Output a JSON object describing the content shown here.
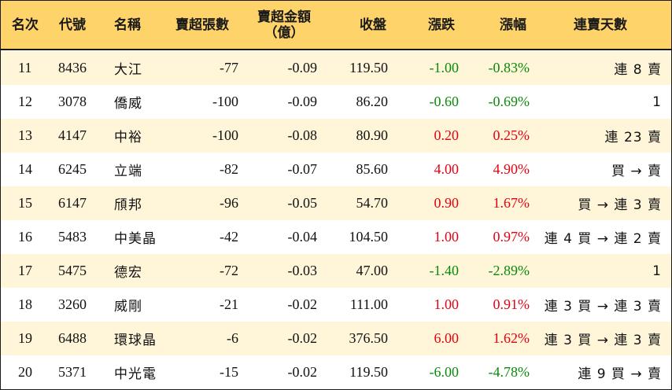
{
  "headers": {
    "rank": "名次",
    "code": "代號",
    "name": "名稱",
    "net_sell_lots": "賣超張數",
    "net_sell_amount_l1": "賣超金額",
    "net_sell_amount_l2": "（億）",
    "close": "收盤",
    "change": "漲跌",
    "pct": "漲幅",
    "streak": "連賣天數"
  },
  "colors": {
    "header_bg": "#fdd36a",
    "shaded_row": "#fff6d9",
    "up": "#e60012",
    "down": "#0a8a0a"
  },
  "rows": [
    {
      "rank": "11",
      "code": "8436",
      "name": "大江",
      "lots": "-77",
      "amount": "-0.09",
      "close": "119.50",
      "change": "-1.00",
      "pct": "-0.83%",
      "dir": "down",
      "streak": "連 8 賣"
    },
    {
      "rank": "12",
      "code": "3078",
      "name": "僑威",
      "lots": "-100",
      "amount": "-0.09",
      "close": "86.20",
      "change": "-0.60",
      "pct": "-0.69%",
      "dir": "down",
      "streak": "1"
    },
    {
      "rank": "13",
      "code": "4147",
      "name": "中裕",
      "lots": "-100",
      "amount": "-0.08",
      "close": "80.90",
      "change": "0.20",
      "pct": "0.25%",
      "dir": "up",
      "streak": "連 23 賣"
    },
    {
      "rank": "14",
      "code": "6245",
      "name": "立端",
      "lots": "-82",
      "amount": "-0.07",
      "close": "85.60",
      "change": "4.00",
      "pct": "4.90%",
      "dir": "up",
      "streak": "買 → 賣"
    },
    {
      "rank": "15",
      "code": "6147",
      "name": "頎邦",
      "lots": "-96",
      "amount": "-0.05",
      "close": "54.70",
      "change": "0.90",
      "pct": "1.67%",
      "dir": "up",
      "streak": "買 → 連 3 賣"
    },
    {
      "rank": "16",
      "code": "5483",
      "name": "中美晶",
      "lots": "-42",
      "amount": "-0.04",
      "close": "104.50",
      "change": "1.00",
      "pct": "0.97%",
      "dir": "up",
      "streak": "連 4 買 → 連 2 賣"
    },
    {
      "rank": "17",
      "code": "5475",
      "name": "德宏",
      "lots": "-72",
      "amount": "-0.03",
      "close": "47.00",
      "change": "-1.40",
      "pct": "-2.89%",
      "dir": "down",
      "streak": "1"
    },
    {
      "rank": "18",
      "code": "3260",
      "name": "威剛",
      "lots": "-21",
      "amount": "-0.02",
      "close": "111.00",
      "change": "1.00",
      "pct": "0.91%",
      "dir": "up",
      "streak": "連 3 買 → 連 3 賣"
    },
    {
      "rank": "19",
      "code": "6488",
      "name": "環球晶",
      "lots": "-6",
      "amount": "-0.02",
      "close": "376.50",
      "change": "6.00",
      "pct": "1.62%",
      "dir": "up",
      "streak": "連 3 買 → 連 3 賣"
    },
    {
      "rank": "20",
      "code": "5371",
      "name": "中光電",
      "lots": "-15",
      "amount": "-0.02",
      "close": "119.50",
      "change": "-6.00",
      "pct": "-4.78%",
      "dir": "down",
      "streak": "連 9 買 → 賣"
    }
  ]
}
